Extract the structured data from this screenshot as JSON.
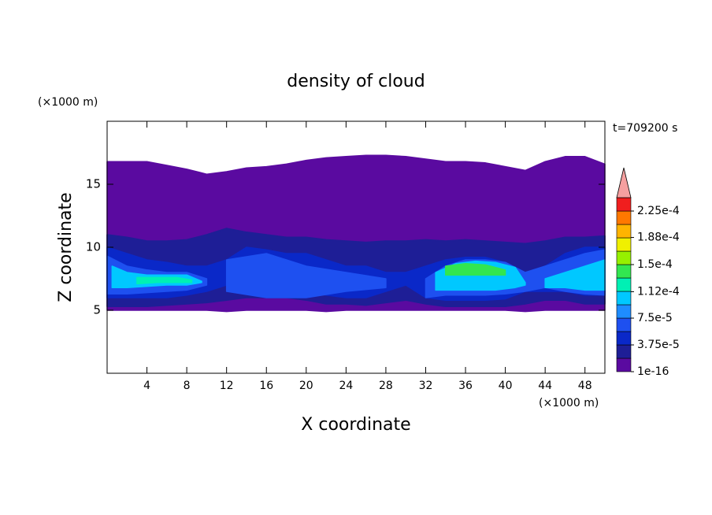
{
  "chart_data": {
    "type": "contour",
    "title": "density of cloud",
    "xlabel": "X coordinate",
    "ylabel": "Z coordinate",
    "x_unit": "(×1000 m)",
    "y_unit": "(×1000 m)",
    "time_label": "t=709200 s",
    "xlim": [
      0,
      50
    ],
    "ylim": [
      0,
      20
    ],
    "xticks": [
      4,
      8,
      12,
      16,
      20,
      24,
      28,
      32,
      36,
      40,
      44,
      48
    ],
    "yticks": [
      5,
      10,
      15
    ],
    "clim": [
      1e-16,
      0.000225
    ],
    "colorbar_ticks": [
      {
        "value": 1e-16,
        "label": "1e-16"
      },
      {
        "value": 3.75e-05,
        "label": "3.75e-5"
      },
      {
        "value": 7.5e-05,
        "label": "7.5e-5"
      },
      {
        "value": 0.000112,
        "label": "1.12e-4"
      },
      {
        "value": 0.00015,
        "label": "1.5e-4"
      },
      {
        "value": 0.000188,
        "label": "1.88e-4"
      },
      {
        "value": 0.000225,
        "label": "2.25e-4"
      }
    ],
    "colors": [
      "#5a0aa0",
      "#1e1e96",
      "#0a28c8",
      "#1e50f0",
      "#1e8cff",
      "#00c8ff",
      "#00f0b4",
      "#32e650",
      "#96f000",
      "#f0f000",
      "#ffb400",
      "#ff7800",
      "#f01e1e"
    ],
    "over_color": "#f5a0a0",
    "regions": [
      {
        "level": 0,
        "x": [
          0,
          2,
          4,
          6,
          8,
          10,
          12,
          14,
          16,
          18,
          20,
          22,
          24,
          26,
          28,
          30,
          32,
          34,
          36,
          38,
          40,
          42,
          44,
          46,
          48,
          50
        ],
        "top": [
          16.8,
          16.8,
          16.8,
          16.5,
          16.2,
          15.8,
          16.0,
          16.3,
          16.4,
          16.6,
          16.9,
          17.1,
          17.2,
          17.3,
          17.3,
          17.2,
          17.0,
          16.8,
          16.8,
          16.7,
          16.4,
          16.1,
          16.8,
          17.2,
          17.2,
          16.6
        ],
        "bottom": [
          5.0,
          5.0,
          5.0,
          5.0,
          5.0,
          5.0,
          4.9,
          5.0,
          5.0,
          5.0,
          5.0,
          4.9,
          5.0,
          5.0,
          5.0,
          5.0,
          5.0,
          5.0,
          5.0,
          5.0,
          5.0,
          4.9,
          5.0,
          5.0,
          5.0,
          5.0
        ]
      },
      {
        "level": 1,
        "x": [
          0,
          2,
          4,
          6,
          8,
          10,
          12,
          14,
          16,
          18,
          20,
          22,
          24,
          26,
          28,
          30,
          32,
          34,
          36,
          38,
          40,
          42,
          44,
          46,
          48,
          50
        ],
        "top": [
          11.0,
          10.8,
          10.5,
          10.5,
          10.6,
          11.0,
          11.5,
          11.2,
          11.0,
          10.8,
          10.8,
          10.6,
          10.5,
          10.4,
          10.5,
          10.5,
          10.6,
          10.5,
          10.6,
          10.5,
          10.4,
          10.3,
          10.5,
          10.8,
          10.8,
          10.9
        ],
        "bottom": [
          5.3,
          5.3,
          5.3,
          5.4,
          5.5,
          5.6,
          5.8,
          6.0,
          6.0,
          6.0,
          5.8,
          5.5,
          5.5,
          5.4,
          5.6,
          5.8,
          5.5,
          5.3,
          5.3,
          5.3,
          5.3,
          5.5,
          5.8,
          5.8,
          5.5,
          5.5
        ]
      },
      {
        "level": 2,
        "x": [
          0,
          2,
          4,
          6,
          8,
          10,
          12,
          14,
          16,
          18,
          20,
          22,
          24,
          26,
          28,
          30,
          32,
          34,
          36,
          38,
          40,
          42,
          44,
          46,
          48,
          50
        ],
        "top": [
          10.0,
          9.5,
          9.0,
          8.8,
          8.5,
          8.5,
          9.0,
          10.0,
          9.8,
          9.5,
          9.5,
          9.0,
          8.5,
          8.5,
          8.0,
          8.0,
          8.5,
          9.0,
          9.2,
          9.2,
          8.8,
          8.0,
          8.5,
          9.5,
          10.0,
          10.0
        ],
        "bottom": [
          6.0,
          6.0,
          6.0,
          6.0,
          6.2,
          6.5,
          7.0,
          7.2,
          7.0,
          6.8,
          6.5,
          6.2,
          6.0,
          6.0,
          6.5,
          7.0,
          6.0,
          5.8,
          5.8,
          5.8,
          5.9,
          6.5,
          6.5,
          6.5,
          6.2,
          6.2
        ]
      },
      {
        "level": 3,
        "x": [
          12,
          16,
          20,
          24,
          28
        ],
        "top": [
          9.0,
          9.5,
          8.5,
          8.0,
          7.5
        ],
        "bottom": [
          6.5,
          6.0,
          6.0,
          6.5,
          6.8
        ]
      },
      {
        "level": 3,
        "x": [
          0,
          2,
          4,
          6,
          8,
          10
        ],
        "top": [
          9.3,
          8.5,
          8.2,
          8.0,
          8.0,
          7.5
        ],
        "bottom": [
          6.3,
          6.3,
          6.4,
          6.5,
          6.6,
          7.0
        ]
      },
      {
        "level": 3,
        "x": [
          32,
          34,
          36,
          38,
          40,
          42,
          44,
          46,
          48,
          50
        ],
        "top": [
          7.5,
          8.5,
          9.0,
          9.0,
          8.8,
          8.0,
          8.5,
          9.0,
          9.5,
          9.8
        ],
        "bottom": [
          6.0,
          6.2,
          6.2,
          6.2,
          6.3,
          6.5,
          6.8,
          6.5,
          6.3,
          6.2
        ]
      },
      {
        "level": 5,
        "x": [
          0.5,
          2,
          4,
          6,
          8,
          9.5
        ],
        "top": [
          8.5,
          8.0,
          7.8,
          7.8,
          7.8,
          7.3
        ],
        "bottom": [
          6.8,
          6.8,
          6.9,
          7.0,
          7.0,
          7.2
        ]
      },
      {
        "level": 5,
        "x": [
          33,
          35,
          37,
          39,
          41,
          42
        ],
        "top": [
          8.0,
          8.7,
          8.9,
          8.8,
          8.4,
          7.2
        ],
        "bottom": [
          6.6,
          6.6,
          6.6,
          6.6,
          6.8,
          7.0
        ]
      },
      {
        "level": 5,
        "x": [
          44,
          46,
          48,
          50
        ],
        "top": [
          7.5,
          8.0,
          8.5,
          9.0
        ],
        "bottom": [
          6.8,
          6.8,
          6.6,
          6.6
        ]
      },
      {
        "level": 6,
        "x": [
          3,
          5,
          7,
          8.5
        ],
        "top": [
          7.6,
          7.6,
          7.6,
          7.4
        ],
        "bottom": [
          7.1,
          7.2,
          7.2,
          7.2
        ]
      },
      {
        "level": 7,
        "x": [
          34,
          36,
          38,
          40
        ],
        "top": [
          8.5,
          8.7,
          8.6,
          8.2
        ],
        "bottom": [
          7.8,
          7.8,
          7.8,
          7.8
        ]
      }
    ]
  }
}
